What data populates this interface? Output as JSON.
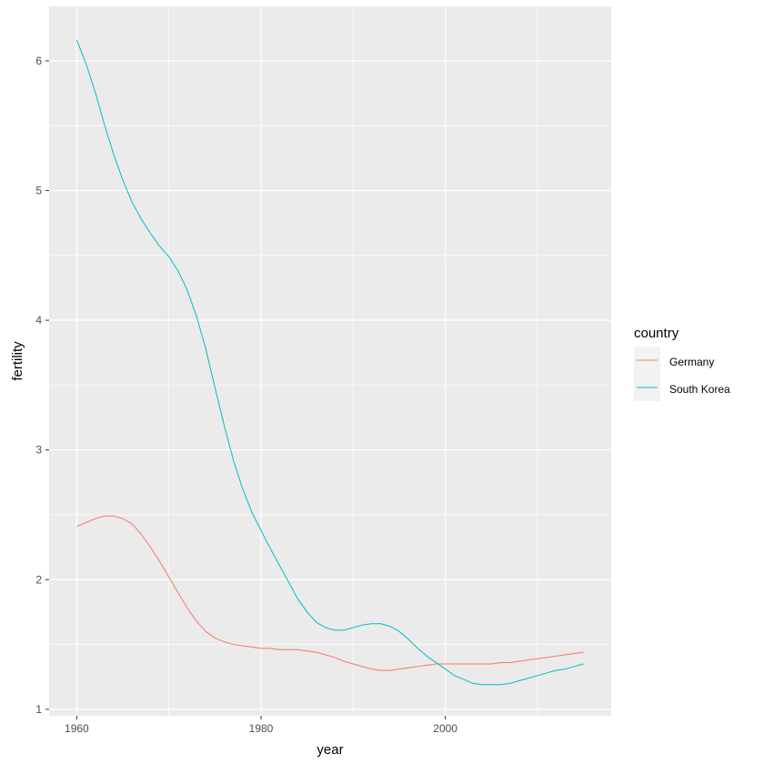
{
  "chart_data": {
    "type": "line",
    "title": "",
    "xlabel": "year",
    "ylabel": "fertility",
    "xlim": [
      1957,
      2018
    ],
    "ylim": [
      0.95,
      6.42
    ],
    "x_ticks": [
      1960,
      1980,
      2000
    ],
    "x_tick_labels": [
      "1960",
      "1980",
      "2000"
    ],
    "x_minor_ticks": [
      1970,
      1990,
      2010
    ],
    "y_ticks": [
      1,
      2,
      3,
      4,
      5,
      6
    ],
    "y_tick_labels": [
      "1",
      "2",
      "3",
      "4",
      "5",
      "6"
    ],
    "y_minor_ticks": [
      1.5,
      2.5,
      3.5,
      4.5,
      5.5
    ],
    "grid": true,
    "background": "#EBEBEB",
    "legend": {
      "title": "country",
      "placement": "right",
      "entries": [
        "Germany",
        "South Korea"
      ]
    },
    "series": [
      {
        "name": "Germany",
        "color": "#F8766D",
        "x": [
          1960,
          1961,
          1962,
          1963,
          1964,
          1965,
          1966,
          1967,
          1968,
          1969,
          1970,
          1971,
          1972,
          1973,
          1974,
          1975,
          1976,
          1977,
          1978,
          1979,
          1980,
          1981,
          1982,
          1983,
          1984,
          1985,
          1986,
          1987,
          1988,
          1989,
          1990,
          1991,
          1992,
          1993,
          1994,
          1995,
          1996,
          1997,
          1998,
          1999,
          2000,
          2001,
          2002,
          2003,
          2004,
          2005,
          2006,
          2007,
          2008,
          2009,
          2010,
          2011,
          2012,
          2013,
          2014,
          2015
        ],
        "y": [
          2.41,
          2.44,
          2.47,
          2.49,
          2.49,
          2.47,
          2.43,
          2.35,
          2.25,
          2.14,
          2.02,
          1.9,
          1.78,
          1.68,
          1.6,
          1.55,
          1.52,
          1.5,
          1.49,
          1.48,
          1.47,
          1.47,
          1.46,
          1.46,
          1.46,
          1.45,
          1.44,
          1.42,
          1.4,
          1.37,
          1.35,
          1.33,
          1.31,
          1.3,
          1.3,
          1.31,
          1.32,
          1.33,
          1.34,
          1.35,
          1.35,
          1.35,
          1.35,
          1.35,
          1.35,
          1.35,
          1.36,
          1.36,
          1.37,
          1.38,
          1.39,
          1.4,
          1.41,
          1.42,
          1.43,
          1.44
        ]
      },
      {
        "name": "South Korea",
        "color": "#00BFC4",
        "x": [
          1960,
          1961,
          1962,
          1963,
          1964,
          1965,
          1966,
          1967,
          1968,
          1969,
          1970,
          1971,
          1972,
          1973,
          1974,
          1975,
          1976,
          1977,
          1978,
          1979,
          1980,
          1981,
          1982,
          1983,
          1984,
          1985,
          1986,
          1987,
          1988,
          1989,
          1990,
          1991,
          1992,
          1993,
          1994,
          1995,
          1996,
          1997,
          1998,
          1999,
          2000,
          2001,
          2002,
          2003,
          2004,
          2005,
          2006,
          2007,
          2008,
          2009,
          2010,
          2011,
          2012,
          2013,
          2014,
          2015
        ],
        "y": [
          6.16,
          5.98,
          5.76,
          5.51,
          5.28,
          5.08,
          4.91,
          4.78,
          4.67,
          4.57,
          4.49,
          4.38,
          4.23,
          4.03,
          3.78,
          3.48,
          3.19,
          2.92,
          2.7,
          2.52,
          2.38,
          2.24,
          2.11,
          1.98,
          1.85,
          1.75,
          1.67,
          1.63,
          1.61,
          1.61,
          1.63,
          1.65,
          1.66,
          1.66,
          1.64,
          1.6,
          1.54,
          1.47,
          1.41,
          1.36,
          1.31,
          1.26,
          1.23,
          1.2,
          1.19,
          1.19,
          1.19,
          1.2,
          1.22,
          1.24,
          1.26,
          1.28,
          1.3,
          1.31,
          1.33,
          1.35
        ]
      }
    ]
  }
}
